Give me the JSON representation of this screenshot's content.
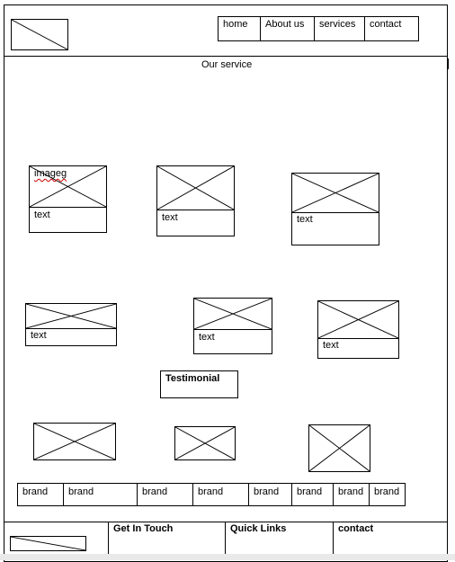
{
  "nav": {
    "items": [
      "home",
      "About us",
      "services",
      "contact"
    ]
  },
  "service_section": {
    "title": "Our service",
    "cards": [
      {
        "image_label": "imageg",
        "text": "text"
      },
      {
        "image_label": "",
        "text": "text"
      },
      {
        "image_label": "",
        "text": "text"
      },
      {
        "image_label": "",
        "text": "text"
      },
      {
        "image_label": "",
        "text": "text"
      },
      {
        "image_label": "",
        "text": "text"
      }
    ]
  },
  "testimonial": {
    "title": "Testimonial"
  },
  "brands": [
    "brand",
    "brand",
    "brand",
    "brand",
    "brand",
    "brand",
    "brand",
    "brand"
  ],
  "footer": {
    "get_in_touch": "Get In Touch",
    "quick_links": "Quick Links",
    "contact": "contact"
  }
}
